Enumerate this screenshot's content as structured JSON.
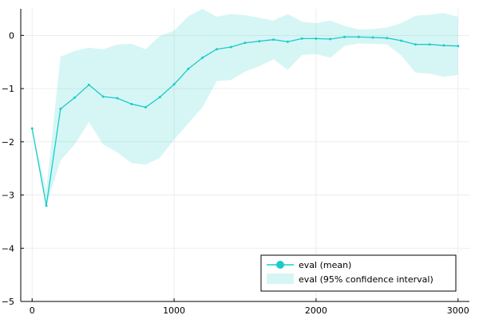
{
  "chart_data": {
    "type": "line",
    "title": "",
    "xlabel": "",
    "ylabel": "",
    "xlim": [
      -80,
      3080
    ],
    "ylim": [
      -5,
      0.5
    ],
    "xticks": [
      0,
      1000,
      2000,
      3000
    ],
    "yticks": [
      -5,
      -4,
      -3,
      -2,
      -1,
      0
    ],
    "xtick_labels": [
      "0",
      "1000",
      "2000",
      "3000"
    ],
    "ytick_labels": [
      "−5",
      "−4",
      "−3",
      "−2",
      "−1",
      "0"
    ],
    "grid": true,
    "legend_position": "bottom-right",
    "x": [
      0,
      100,
      200,
      300,
      400,
      500,
      600,
      700,
      800,
      900,
      1000,
      1100,
      1200,
      1300,
      1400,
      1500,
      1600,
      1700,
      1800,
      1900,
      2000,
      2100,
      2200,
      2300,
      2400,
      2500,
      2600,
      2700,
      2800,
      2900,
      3000
    ],
    "series": [
      {
        "name": "eval (mean)",
        "color": "#1ccbc9",
        "values": [
          -1.75,
          -3.2,
          -1.38,
          -1.17,
          -0.93,
          -1.15,
          -1.18,
          -1.29,
          -1.35,
          -1.16,
          -0.92,
          -0.63,
          -0.42,
          -0.26,
          -0.22,
          -0.14,
          -0.11,
          -0.08,
          -0.12,
          -0.06,
          -0.06,
          -0.07,
          -0.03,
          -0.03,
          -0.04,
          -0.05,
          -0.1,
          -0.17,
          -0.17,
          -0.19,
          -0.2
        ]
      }
    ],
    "bands": [
      {
        "name": "eval (95% confidence interval)",
        "color": "#1ccbc9",
        "opacity": 0.18,
        "lower": [
          -1.75,
          -3.2,
          -2.35,
          -2.05,
          -1.63,
          -2.05,
          -2.2,
          -2.4,
          -2.43,
          -2.3,
          -1.96,
          -1.65,
          -1.35,
          -0.86,
          -0.84,
          -0.68,
          -0.58,
          -0.45,
          -0.65,
          -0.37,
          -0.35,
          -0.42,
          -0.2,
          -0.15,
          -0.16,
          -0.17,
          -0.38,
          -0.7,
          -0.72,
          -0.78,
          -0.74
        ],
        "upper": [
          -1.75,
          -2.9,
          -0.4,
          -0.29,
          -0.23,
          -0.26,
          -0.17,
          -0.16,
          -0.26,
          -0.01,
          0.09,
          0.36,
          0.5,
          0.35,
          0.4,
          0.38,
          0.33,
          0.28,
          0.4,
          0.26,
          0.23,
          0.28,
          0.18,
          0.11,
          0.12,
          0.15,
          0.23,
          0.37,
          0.39,
          0.42,
          0.35
        ]
      }
    ]
  }
}
